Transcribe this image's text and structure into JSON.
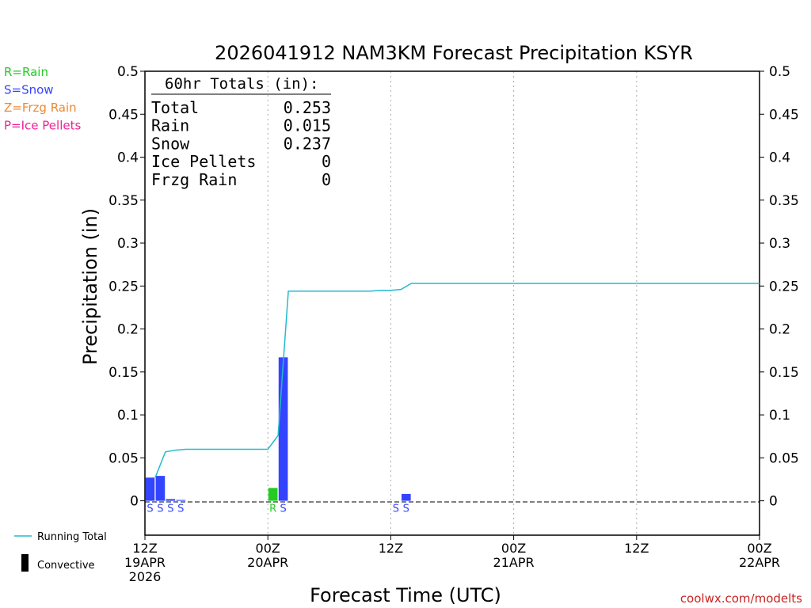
{
  "chart_data": {
    "type": "bar",
    "title": "2026041912 NAM3KM Forecast Precipitation KSYR",
    "xlabel": "Forecast Time (UTC)",
    "ylabel": "Precipitation (in)",
    "ylim": [
      -0.04,
      0.5
    ],
    "xlim_hours": [
      0,
      60
    ],
    "y_ticks": [
      "0",
      "0.05",
      "0.1",
      "0.15",
      "0.2",
      "0.25",
      "0.3",
      "0.35",
      "0.4",
      "0.45",
      "0.5"
    ],
    "y_tick_values": [
      0,
      0.05,
      0.1,
      0.15,
      0.2,
      0.25,
      0.3,
      0.35,
      0.4,
      0.45,
      0.5
    ],
    "x_ticks": [
      {
        "hour": 0,
        "lines": [
          "12Z",
          "19APR",
          "2026"
        ]
      },
      {
        "hour": 12,
        "lines": [
          "00Z",
          "20APR"
        ]
      },
      {
        "hour": 24,
        "lines": [
          "12Z"
        ]
      },
      {
        "hour": 36,
        "lines": [
          "00Z",
          "21APR"
        ]
      },
      {
        "hour": 48,
        "lines": [
          "12Z"
        ]
      },
      {
        "hour": 60,
        "lines": [
          "00Z",
          "22APR"
        ]
      }
    ],
    "grid": "vertical dotted at 12h",
    "legend": [
      {
        "code": "R",
        "label": "R=Rain",
        "color": "#22cc22"
      },
      {
        "code": "S",
        "label": "S=Snow",
        "color": "#3344ff"
      },
      {
        "code": "Z",
        "label": "Z=Frzg Rain",
        "color": "#ee8833"
      },
      {
        "code": "P",
        "label": "P=Ice Pellets",
        "color": "#ee2299"
      }
    ],
    "bars": [
      {
        "hour": 1,
        "value": 0.027,
        "type": "S"
      },
      {
        "hour": 2,
        "value": 0.029,
        "type": "S"
      },
      {
        "hour": 3,
        "value": 0.002,
        "type": "S"
      },
      {
        "hour": 4,
        "value": 0.001,
        "type": "S"
      },
      {
        "hour": 13,
        "value": 0.015,
        "type": "R"
      },
      {
        "hour": 14,
        "value": 0.167,
        "type": "S"
      },
      {
        "hour": 25,
        "value": 0.0,
        "type": "S"
      },
      {
        "hour": 26,
        "value": 0.008,
        "type": "S"
      }
    ],
    "running_total": {
      "name": "Running Total",
      "color": "#22bbcc",
      "hours": [
        1,
        2,
        3,
        4,
        5,
        6,
        7,
        8,
        9,
        10,
        11,
        12,
        13,
        14,
        15,
        16,
        17,
        18,
        19,
        20,
        21,
        22,
        23,
        24,
        25,
        26,
        27,
        60
      ],
      "values": [
        0.027,
        0.057,
        0.059,
        0.06,
        0.06,
        0.06,
        0.06,
        0.06,
        0.06,
        0.06,
        0.06,
        0.06,
        0.076,
        0.244,
        0.244,
        0.244,
        0.244,
        0.244,
        0.244,
        0.244,
        0.244,
        0.244,
        0.245,
        0.245,
        0.246,
        0.253,
        0.253,
        0.253
      ]
    },
    "totals_box": {
      "heading": "60hr Totals (in):",
      "rows": [
        {
          "label": "Total",
          "value": "0.253"
        },
        {
          "label": "Rain",
          "value": "0.015"
        },
        {
          "label": "Snow",
          "value": "0.237"
        },
        {
          "label": "Ice Pellets",
          "value": "0"
        },
        {
          "label": "Frzg Rain",
          "value": "0"
        }
      ]
    },
    "bottom_legend": [
      {
        "label": "Running Total",
        "kind": "line",
        "color": "#22bbcc"
      },
      {
        "label": "Convective",
        "kind": "bar",
        "color": "#000000"
      }
    ],
    "credit": "coolwx.com/modelts",
    "credit_color": "#cc2222"
  }
}
